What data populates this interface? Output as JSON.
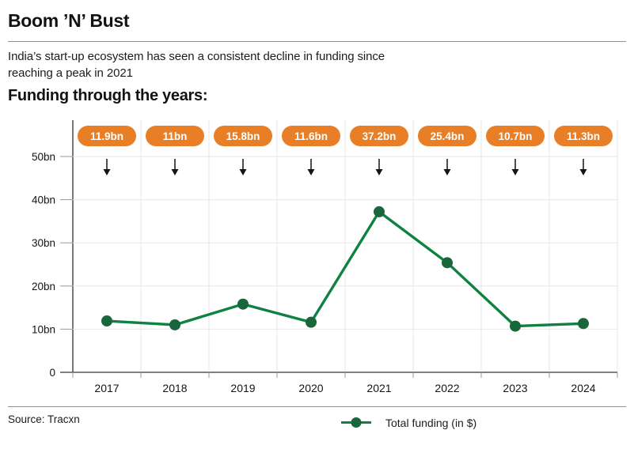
{
  "header": {
    "title": "Boom ’N’ Bust",
    "subtitle": "India’s start-up ecosystem has seen a consistent decline in funding since\nreaching a peak in 2021",
    "section_title": "Funding through the years:"
  },
  "chart_data": {
    "type": "line",
    "title": "Funding through the years",
    "categories": [
      "2017",
      "2018",
      "2019",
      "2020",
      "2021",
      "2022",
      "2023",
      "2024"
    ],
    "values": [
      11.9,
      11,
      15.8,
      11.6,
      37.2,
      25.4,
      10.7,
      11.3
    ],
    "value_labels": [
      "11.9bn",
      "11bn",
      "15.8bn",
      "11.6bn",
      "37.2bn",
      "25.4bn",
      "10.7bn",
      "11.3bn"
    ],
    "y_tick_labels": [
      "0",
      "10bn",
      "20bn",
      "30bn",
      "40bn",
      "50bn"
    ],
    "ylim": [
      0,
      50
    ],
    "xlabel": "",
    "ylabel": "",
    "grid": true,
    "legend_position": "bottom",
    "series_name": "Total funding (in $)",
    "colors": {
      "line": "#0f8142",
      "point": "#18663a",
      "badge": "#e87e26",
      "badge_text": "#ffffff",
      "grid": "#e7e7e7",
      "axis": "#565656",
      "tick": "#9b9b9b",
      "arrow": "#141414",
      "text": "#141414"
    }
  },
  "legend": {
    "label": "Total funding (in $)"
  },
  "footer": {
    "source": "Source: Tracxn"
  }
}
